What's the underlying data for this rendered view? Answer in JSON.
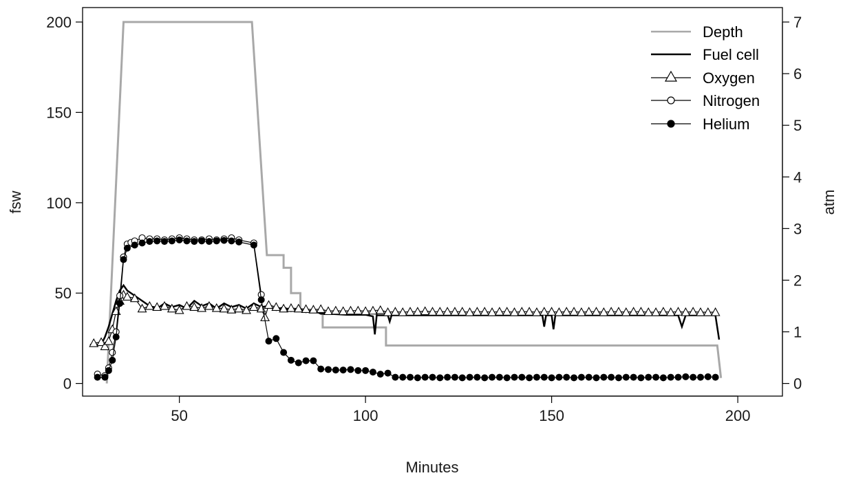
{
  "chart_data": {
    "type": "line",
    "xlabel": "Minutes",
    "ylabel_left": "fsw",
    "ylabel_right": "atm",
    "xlim": [
      24,
      212
    ],
    "ylim_left": [
      -7,
      208
    ],
    "ylim_right": [
      -0.245,
      7.28
    ],
    "x_ticks": [
      50,
      100,
      150,
      200
    ],
    "y_left_ticks": [
      0,
      50,
      100,
      150,
      200
    ],
    "y_right_ticks": [
      0,
      1,
      2,
      3,
      4,
      5,
      6,
      7
    ],
    "grid": false,
    "legend_position": "top-right",
    "colors": {
      "depth": "#a8a8a8",
      "fuel_cell": "#000000",
      "oxygen": "#000000",
      "nitrogen": "#000000",
      "helium": "#000000"
    },
    "series": [
      {
        "name": "Depth",
        "key": "depth",
        "axis": "left",
        "style": "line",
        "x": [
          30.5,
          35.0,
          69.5,
          73.5,
          73.5,
          78.0,
          78.0,
          80.0,
          80.0,
          82.5,
          82.5,
          88.5,
          88.5,
          105.5,
          105.5,
          194.5,
          195.5
        ],
        "y": [
          0,
          200,
          200,
          71,
          71,
          71,
          64,
          64,
          50,
          50,
          40,
          40,
          31,
          31,
          21,
          21,
          3
        ]
      },
      {
        "name": "Fuel cell",
        "key": "fuel_cell",
        "axis": "right",
        "style": "line",
        "x": [
          26,
          29,
          30,
          31,
          32,
          33,
          34,
          35,
          36,
          38,
          40,
          42,
          44,
          46,
          48,
          50,
          52,
          54,
          56,
          58,
          60,
          62,
          64,
          66,
          68,
          70,
          72,
          74,
          76,
          78,
          80,
          82,
          84,
          86,
          88,
          90,
          95,
          100,
          102,
          102.5,
          103,
          106,
          106.5,
          107,
          110,
          115,
          120,
          125,
          130,
          137,
          140,
          145,
          147.5,
          148,
          148.5,
          150,
          150.5,
          151,
          155,
          160,
          165,
          168,
          170,
          175,
          180,
          184,
          185,
          186,
          188,
          190,
          194,
          195
        ],
        "y": [
          0.75,
          0.75,
          0.9,
          1.1,
          1.35,
          1.6,
          1.8,
          1.9,
          1.8,
          1.7,
          1.6,
          1.5,
          1.45,
          1.55,
          1.48,
          1.52,
          1.45,
          1.6,
          1.5,
          1.55,
          1.45,
          1.55,
          1.48,
          1.52,
          1.45,
          1.55,
          1.48,
          1.5,
          1.42,
          1.48,
          1.4,
          1.45,
          1.38,
          1.42,
          1.35,
          1.35,
          1.33,
          1.33,
          1.3,
          0.95,
          1.32,
          1.32,
          1.2,
          1.32,
          1.32,
          1.32,
          1.32,
          1.32,
          1.32,
          1.32,
          1.32,
          1.32,
          1.32,
          1.1,
          1.32,
          1.32,
          1.05,
          1.32,
          1.32,
          1.32,
          1.32,
          1.32,
          1.32,
          1.32,
          1.32,
          1.32,
          1.1,
          1.32,
          1.32,
          1.32,
          1.32,
          0.85
        ]
      },
      {
        "name": "Oxygen",
        "key": "oxygen",
        "axis": "right",
        "style": "line-marker",
        "marker": "triangle-open",
        "x": [
          27,
          29,
          30,
          31,
          32,
          33,
          34,
          35,
          36,
          38,
          40,
          42,
          44,
          46,
          48,
          50,
          52,
          54,
          56,
          58,
          60,
          62,
          64,
          66,
          68,
          70,
          72,
          73,
          74,
          76,
          78,
          80,
          82,
          84,
          86,
          88,
          90,
          92,
          94,
          96,
          98,
          100,
          102,
          104,
          106,
          108,
          110,
          112,
          114,
          116,
          118,
          120,
          122,
          124,
          126,
          128,
          130,
          132,
          134,
          136,
          138,
          140,
          142,
          144,
          146,
          148,
          150,
          152,
          154,
          156,
          158,
          160,
          162,
          164,
          166,
          168,
          170,
          172,
          174,
          176,
          178,
          180,
          182,
          184,
          186,
          188,
          190,
          192,
          194
        ],
        "y": [
          0.78,
          0.8,
          0.72,
          0.82,
          1.05,
          1.4,
          1.6,
          1.72,
          1.68,
          1.65,
          1.45,
          1.5,
          1.48,
          1.5,
          1.45,
          1.42,
          1.5,
          1.48,
          1.46,
          1.5,
          1.46,
          1.45,
          1.43,
          1.45,
          1.42,
          1.48,
          1.45,
          1.28,
          1.52,
          1.48,
          1.45,
          1.46,
          1.45,
          1.44,
          1.43,
          1.44,
          1.4,
          1.41,
          1.4,
          1.41,
          1.41,
          1.4,
          1.41,
          1.42,
          1.38,
          1.39,
          1.38,
          1.39,
          1.39,
          1.4,
          1.39,
          1.39,
          1.39,
          1.39,
          1.39,
          1.38,
          1.39,
          1.39,
          1.38,
          1.39,
          1.39,
          1.38,
          1.39,
          1.39,
          1.38,
          1.39,
          1.39,
          1.38,
          1.39,
          1.39,
          1.38,
          1.39,
          1.39,
          1.38,
          1.39,
          1.39,
          1.38,
          1.39,
          1.39,
          1.38,
          1.38,
          1.39,
          1.38,
          1.39,
          1.38,
          1.39,
          1.38,
          1.38,
          1.38
        ]
      },
      {
        "name": "Nitrogen",
        "key": "nitrogen",
        "axis": "right",
        "style": "line-marker",
        "marker": "circle-open",
        "x": [
          28,
          30,
          31,
          32,
          33,
          34,
          35,
          36,
          37,
          38,
          40,
          42,
          44,
          46,
          48,
          50,
          52,
          54,
          56,
          58,
          60,
          62,
          64,
          66,
          70,
          72
        ],
        "y": [
          0.18,
          0.15,
          0.3,
          0.6,
          1.0,
          1.7,
          2.45,
          2.7,
          2.73,
          2.76,
          2.82,
          2.8,
          2.8,
          2.78,
          2.8,
          2.82,
          2.8,
          2.78,
          2.78,
          2.8,
          2.78,
          2.8,
          2.82,
          2.78,
          2.72,
          1.72
        ]
      },
      {
        "name": "Helium",
        "key": "helium",
        "axis": "right",
        "style": "line-marker",
        "marker": "circle-filled",
        "x": [
          28,
          30,
          31,
          32,
          33,
          34,
          35,
          36,
          38,
          40,
          42,
          44,
          46,
          48,
          50,
          52,
          54,
          56,
          58,
          60,
          62,
          64,
          66,
          70,
          72,
          74,
          76,
          78,
          80,
          82,
          84,
          86,
          88,
          90,
          92,
          94,
          96,
          98,
          100,
          102,
          104,
          106,
          108,
          110,
          112,
          114,
          116,
          118,
          120,
          122,
          124,
          126,
          128,
          130,
          132,
          134,
          136,
          138,
          140,
          142,
          144,
          146,
          148,
          150,
          152,
          154,
          156,
          158,
          160,
          162,
          164,
          166,
          168,
          170,
          172,
          174,
          176,
          178,
          180,
          182,
          184,
          186,
          188,
          190,
          192,
          194
        ],
        "y": [
          0.12,
          0.12,
          0.25,
          0.45,
          0.9,
          1.55,
          2.4,
          2.62,
          2.68,
          2.72,
          2.75,
          2.76,
          2.75,
          2.76,
          2.78,
          2.76,
          2.75,
          2.76,
          2.75,
          2.76,
          2.77,
          2.76,
          2.74,
          2.68,
          1.62,
          0.82,
          0.87,
          0.6,
          0.45,
          0.4,
          0.44,
          0.44,
          0.28,
          0.27,
          0.26,
          0.26,
          0.27,
          0.25,
          0.25,
          0.22,
          0.18,
          0.2,
          0.12,
          0.12,
          0.12,
          0.11,
          0.12,
          0.12,
          0.11,
          0.12,
          0.12,
          0.11,
          0.12,
          0.12,
          0.11,
          0.12,
          0.12,
          0.11,
          0.12,
          0.12,
          0.11,
          0.12,
          0.12,
          0.11,
          0.12,
          0.12,
          0.11,
          0.12,
          0.12,
          0.11,
          0.12,
          0.12,
          0.11,
          0.12,
          0.12,
          0.11,
          0.12,
          0.12,
          0.11,
          0.12,
          0.12,
          0.13,
          0.12,
          0.12,
          0.13,
          0.12
        ]
      }
    ]
  }
}
